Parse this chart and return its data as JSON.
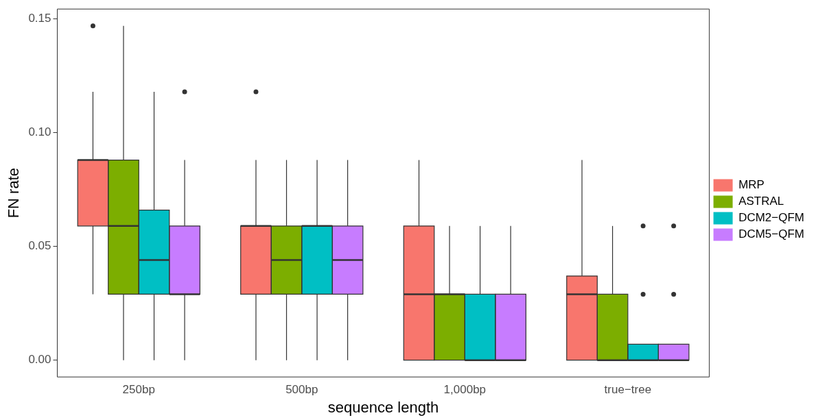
{
  "chart_data": {
    "type": "box",
    "xlabel": "sequence length",
    "ylabel": "FN rate",
    "categories": [
      "250bp",
      "500bp",
      "1,000bp",
      "true−tree"
    ],
    "ylim": [
      -0.0074,
      0.1544
    ],
    "yticks": [
      {
        "value": 0,
        "label": "0.00"
      },
      {
        "value": 0.05,
        "label": "0.05"
      },
      {
        "value": 0.1,
        "label": "0.10"
      },
      {
        "value": 0.15,
        "label": "0.15"
      }
    ],
    "legend": "right",
    "series": [
      {
        "name": "MRP",
        "color": "#f8766d",
        "boxes": [
          {
            "low": 0.029,
            "q1": 0.059,
            "median": 0.088,
            "q3": 0.088,
            "high": 0.118,
            "outliers": [
              0.147
            ]
          },
          {
            "low": 0,
            "q1": 0.029,
            "median": 0.059,
            "q3": 0.059,
            "high": 0.088,
            "outliers": [
              0.118
            ]
          },
          {
            "low": 0,
            "q1": 0,
            "median": 0.029,
            "q3": 0.059,
            "high": 0.088
          },
          {
            "low": 0,
            "q1": 0,
            "median": 0.029,
            "q3": 0.037,
            "high": 0.088
          }
        ]
      },
      {
        "name": "ASTRAL",
        "color": "#7cae00",
        "boxes": [
          {
            "low": 0,
            "q1": 0.029,
            "median": 0.059,
            "q3": 0.088,
            "high": 0.147
          },
          {
            "low": 0,
            "q1": 0.029,
            "median": 0.044,
            "q3": 0.059,
            "high": 0.088
          },
          {
            "low": 0,
            "q1": 0,
            "median": 0.029,
            "q3": 0.029,
            "high": 0.059
          },
          {
            "low": 0,
            "q1": 0,
            "median": 0,
            "q3": 0.029,
            "high": 0.059
          }
        ]
      },
      {
        "name": "DCM2−QFM",
        "color": "#00bfc4",
        "boxes": [
          {
            "low": 0,
            "q1": 0.029,
            "median": 0.044,
            "q3": 0.066,
            "high": 0.118
          },
          {
            "low": 0,
            "q1": 0.029,
            "median": 0.059,
            "q3": 0.059,
            "high": 0.088
          },
          {
            "low": 0,
            "q1": 0,
            "median": 0,
            "q3": 0.029,
            "high": 0.059
          },
          {
            "low": 0,
            "q1": 0,
            "median": 0,
            "q3": 0.007,
            "high": 0.007,
            "outliers": [
              0.029,
              0.059
            ]
          }
        ]
      },
      {
        "name": "DCM5−QFM",
        "color": "#c77cff",
        "boxes": [
          {
            "low": 0,
            "q1": 0.029,
            "median": 0.029,
            "q3": 0.059,
            "high": 0.088,
            "outliers": [
              0.118
            ]
          },
          {
            "low": 0,
            "q1": 0.029,
            "median": 0.044,
            "q3": 0.059,
            "high": 0.088
          },
          {
            "low": 0,
            "q1": 0,
            "median": 0,
            "q3": 0.029,
            "high": 0.059
          },
          {
            "low": 0,
            "q1": 0,
            "median": 0,
            "q3": 0.007,
            "high": 0.007,
            "outliers": [
              0.029,
              0.059
            ]
          }
        ]
      }
    ]
  }
}
